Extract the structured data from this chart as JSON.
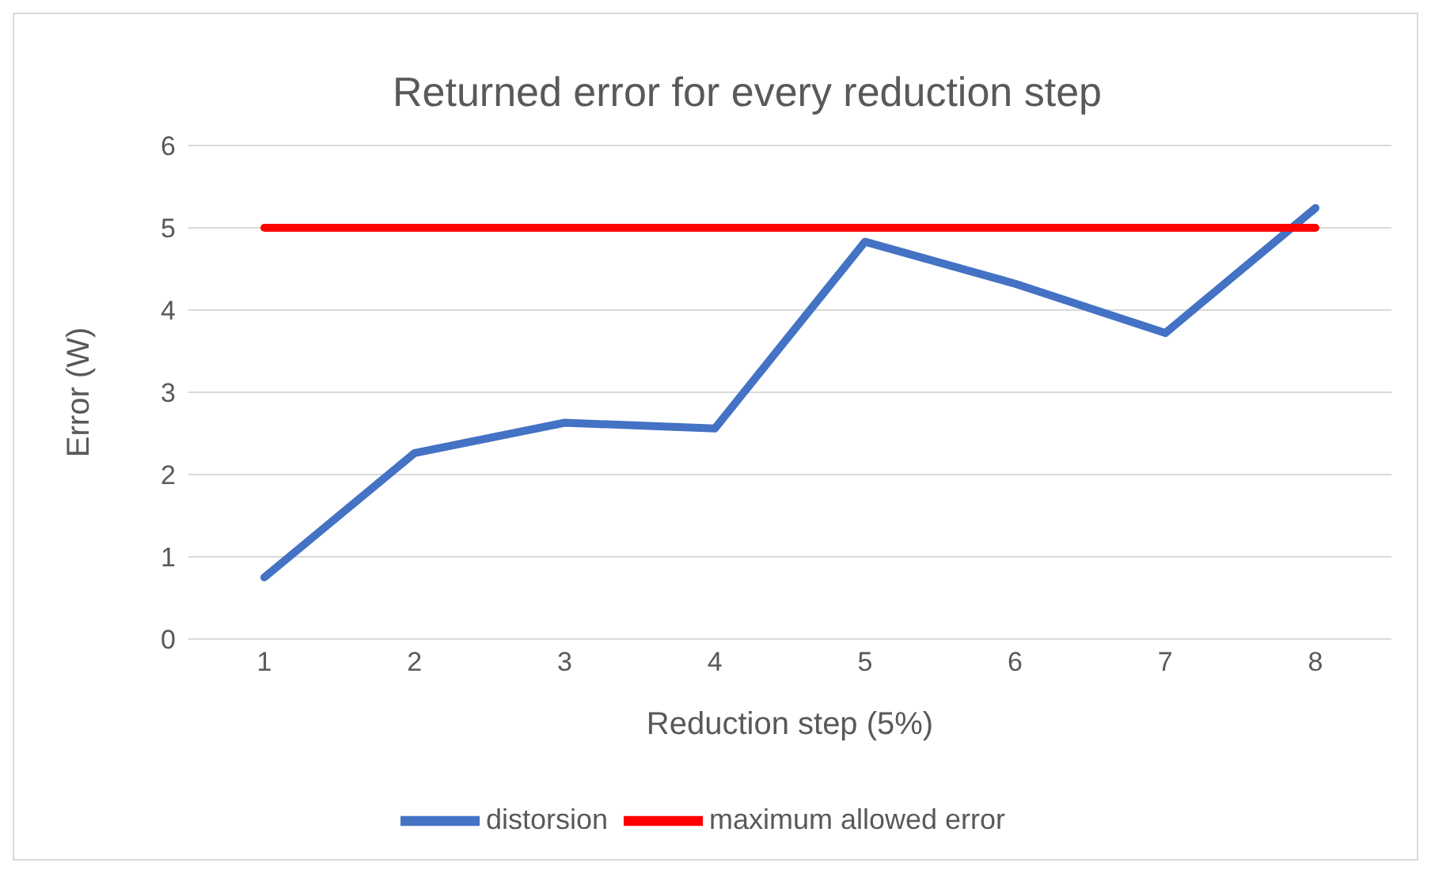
{
  "chart_data": {
    "type": "line",
    "title": "Returned error for every reduction step",
    "xlabel": "Reduction step (5%)",
    "ylabel": "Error (W)",
    "categories": [
      "1",
      "2",
      "3",
      "4",
      "5",
      "6",
      "7",
      "8"
    ],
    "series": [
      {
        "name": "distorsion",
        "color": "#4472c4",
        "values": [
          0.75,
          2.26,
          2.63,
          2.56,
          4.83,
          4.32,
          3.72,
          5.24
        ]
      },
      {
        "name": "maximum allowed error",
        "color": "#ff0000",
        "values": [
          5,
          5,
          5,
          5,
          5,
          5,
          5,
          5
        ]
      }
    ],
    "ylim": [
      0,
      6
    ],
    "yticks": [
      0,
      1,
      2,
      3,
      4,
      5,
      6
    ],
    "grid": "y",
    "legend": "bottom",
    "marker": "none",
    "line_style": "solid"
  }
}
